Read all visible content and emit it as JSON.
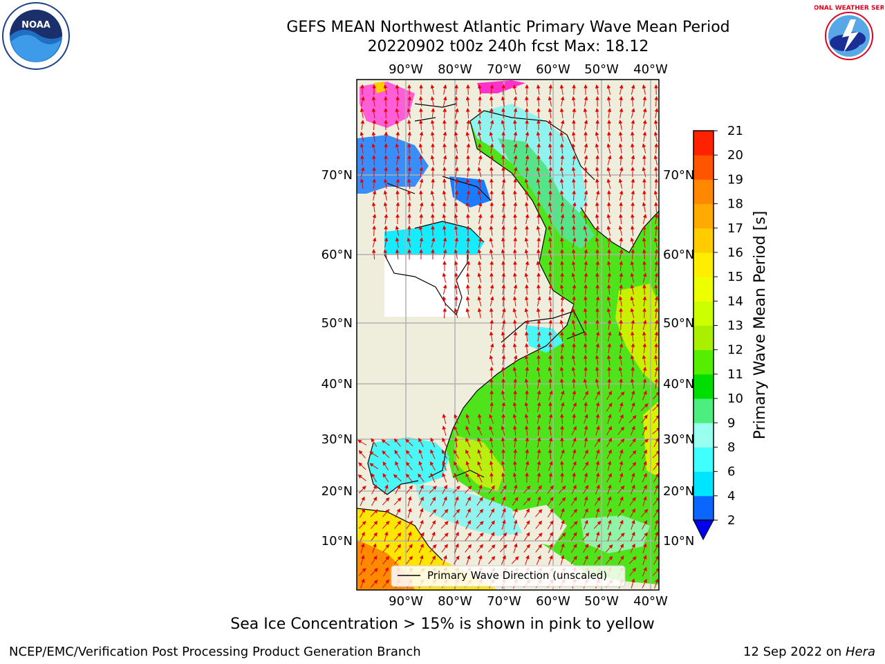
{
  "header": {
    "title_line1": "GEFS MEAN Northwest Atlantic Primary Wave Mean Period",
    "title_line2": "20220902 t00z 240h fcst   Max: 18.12"
  },
  "logos": {
    "noaa_text": "NOAA",
    "nws_text": "NATIONAL WEATHER SERVICE"
  },
  "map": {
    "lon_labels": [
      "90°W",
      "80°W",
      "70°W",
      "60°W",
      "50°W",
      "40°W"
    ],
    "lat_labels": [
      "70°N",
      "60°N",
      "50°N",
      "40°N",
      "30°N",
      "20°N",
      "10°N"
    ],
    "legend_label": "Primary Wave Direction (unscaled)",
    "colors": {
      "land": "#efeddc",
      "arrow": "#e60000",
      "grid": "#b0b0b0"
    }
  },
  "colorbar": {
    "label": "Primary Wave Mean Period [s]",
    "ticks": [
      "2",
      "4",
      "6",
      "8",
      "9",
      "10",
      "11",
      "12",
      "13",
      "14",
      "15",
      "16",
      "17",
      "18",
      "19",
      "20",
      "21"
    ],
    "colors": [
      "#0a66ff",
      "#00e5ff",
      "#40ffff",
      "#99ffee",
      "#4cee80",
      "#00dd00",
      "#55ee00",
      "#aaee00",
      "#ccff00",
      "#eeff00",
      "#ffee00",
      "#ffcc00",
      "#ffaa00",
      "#ff8800",
      "#ff5500",
      "#ff2200"
    ],
    "extend_color": "#0000ee"
  },
  "footer": {
    "sea_ice_note": "Sea Ice Concentration > 15% is shown in pink to yellow",
    "branch": "NCEP/EMC/Verification Post Processing Product Generation Branch",
    "date": "12 Sep 2022 on ",
    "host": "Hera"
  }
}
